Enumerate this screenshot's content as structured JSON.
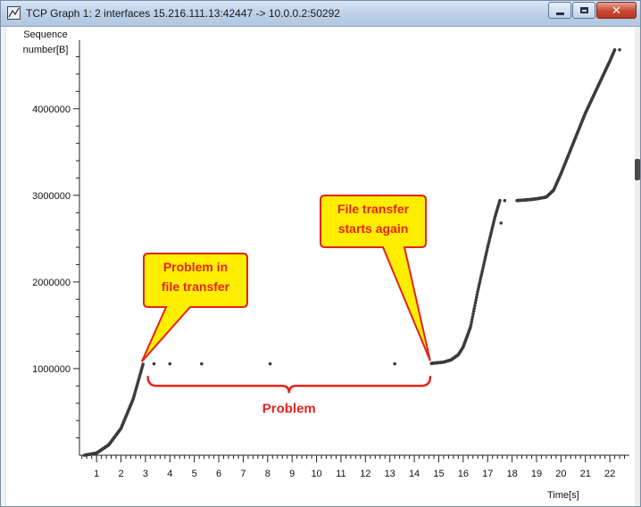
{
  "window": {
    "title": "TCP Graph 1: 2 interfaces 15.216.111.13:42447 -> 10.0.0.2:50292",
    "close_glyph": "✕"
  },
  "colors": {
    "data_point": "#3c3c3c",
    "annotation_red": "#e5241b",
    "callout_fill": "#ffee00",
    "axis": "#222222"
  },
  "chart_data": {
    "type": "scatter",
    "title": "",
    "ylabel": "Sequence number[B]",
    "xlabel": "Time[s]",
    "xlim": [
      0.3,
      22.8
    ],
    "ylim": [
      0,
      4750000
    ],
    "x_ticks": [
      1,
      2,
      3,
      4,
      5,
      6,
      7,
      8,
      9,
      10,
      11,
      12,
      13,
      14,
      15,
      16,
      17,
      18,
      19,
      20,
      21,
      22
    ],
    "y_ticks": [
      1000000,
      2000000,
      3000000,
      4000000
    ],
    "y_tick_labels": [
      "1000000",
      "2000000",
      "3000000",
      "4000000"
    ],
    "grid": false,
    "segments": [
      {
        "x": [
          0.5,
          1.0,
          1.5,
          2.0,
          2.5,
          2.9
        ],
        "y": [
          0,
          25000,
          120000,
          310000,
          650000,
          1050000
        ]
      },
      {
        "x": [
          14.7,
          15.2,
          15.5,
          15.8,
          16.0,
          16.3,
          16.6,
          17.0,
          17.3,
          17.5
        ],
        "y": [
          1060000,
          1075000,
          1100000,
          1160000,
          1250000,
          1480000,
          1900000,
          2400000,
          2750000,
          2940000
        ]
      },
      {
        "x": [
          18.2,
          18.7,
          19.0,
          19.4,
          19.7,
          20.0,
          20.5,
          21.0,
          21.5,
          22.0,
          22.2
        ],
        "y": [
          2940000,
          2950000,
          2960000,
          2980000,
          3060000,
          3250000,
          3600000,
          3950000,
          4250000,
          4550000,
          4680000
        ]
      }
    ],
    "isolated_points": [
      {
        "x": 3.35,
        "y": 1055000
      },
      {
        "x": 4.0,
        "y": 1055000
      },
      {
        "x": 5.3,
        "y": 1055000
      },
      {
        "x": 8.1,
        "y": 1055000
      },
      {
        "x": 13.2,
        "y": 1055000
      },
      {
        "x": 17.55,
        "y": 2680000
      },
      {
        "x": 17.7,
        "y": 2940000
      },
      {
        "x": 22.4,
        "y": 4680000
      }
    ],
    "annotations": {
      "problem_callout": {
        "lines": [
          "Problem in",
          "file transfer"
        ],
        "points_to": {
          "x": 2.85,
          "y": 1050000
        }
      },
      "restart_callout": {
        "lines": [
          "File transfer",
          "starts again"
        ],
        "points_to": {
          "x": 14.65,
          "y": 1060000
        }
      },
      "gap_brace": {
        "label": "Problem",
        "x_start": 3.1,
        "x_end": 14.65,
        "y": 780000
      }
    }
  }
}
